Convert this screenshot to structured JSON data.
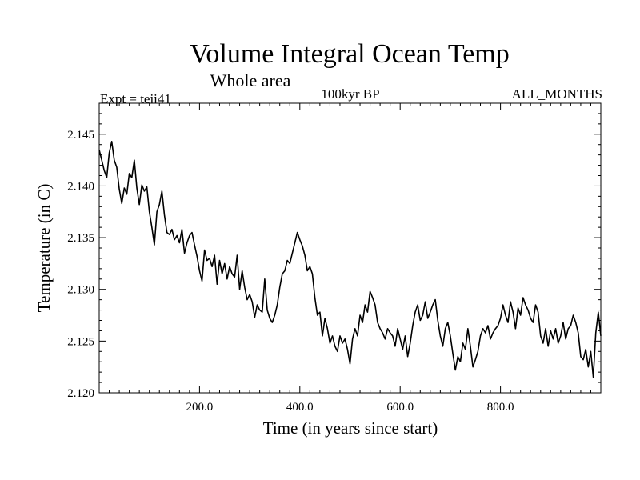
{
  "chart_data": {
    "type": "line",
    "title": "Volume Integral Ocean Temp",
    "subtitle": "Whole area",
    "annotations": {
      "expt": "Expt = teii41",
      "period": "100kyr BP",
      "months": "ALL_MONTHS"
    },
    "xlabel": "Time (in years since start)",
    "ylabel": "Temperature (in C)",
    "xlim": [
      0,
      1000
    ],
    "ylim": [
      2.12,
      2.148
    ],
    "xticks": [
      200,
      400,
      600,
      800
    ],
    "xtick_labels": [
      "200.0",
      "400.0",
      "600.0",
      "800.0"
    ],
    "yticks": [
      2.12,
      2.125,
      2.13,
      2.135,
      2.14,
      2.145
    ],
    "ytick_labels": [
      "2.120",
      "2.125",
      "2.130",
      "2.135",
      "2.140",
      "2.145"
    ],
    "grid": false,
    "series": [
      {
        "color": "#000000",
        "x": [
          0,
          5,
          10,
          15,
          20,
          25,
          30,
          35,
          40,
          45,
          50,
          55,
          60,
          65,
          70,
          75,
          80,
          85,
          90,
          95,
          100,
          105,
          110,
          115,
          120,
          125,
          130,
          135,
          140,
          145,
          150,
          155,
          160,
          165,
          170,
          175,
          180,
          185,
          190,
          195,
          200,
          205,
          210,
          215,
          220,
          225,
          230,
          235,
          240,
          245,
          250,
          255,
          260,
          265,
          270,
          275,
          280,
          285,
          290,
          295,
          300,
          305,
          310,
          315,
          320,
          325,
          330,
          335,
          340,
          345,
          350,
          355,
          360,
          365,
          370,
          375,
          380,
          385,
          390,
          395,
          400,
          405,
          410,
          415,
          420,
          425,
          430,
          435,
          440,
          445,
          450,
          455,
          460,
          465,
          470,
          475,
          480,
          485,
          490,
          495,
          500,
          505,
          510,
          515,
          520,
          525,
          530,
          535,
          540,
          545,
          550,
          555,
          560,
          565,
          570,
          575,
          580,
          585,
          590,
          595,
          600,
          605,
          610,
          615,
          620,
          625,
          630,
          635,
          640,
          645,
          650,
          655,
          660,
          665,
          670,
          675,
          680,
          685,
          690,
          695,
          700,
          705,
          710,
          715,
          720,
          725,
          730,
          735,
          740,
          745,
          750,
          755,
          760,
          765,
          770,
          775,
          780,
          785,
          790,
          795,
          800,
          805,
          810,
          815,
          820,
          825,
          830,
          835,
          840,
          845,
          850,
          855,
          860,
          865,
          870,
          875,
          880,
          885,
          890,
          895,
          900,
          905,
          910,
          915,
          920,
          925,
          930,
          935,
          940,
          945,
          950,
          955,
          960,
          965,
          970,
          975,
          980,
          985,
          990,
          995,
          1000
        ],
        "y": [
          2.1435,
          2.1425,
          2.1415,
          2.1408,
          2.1432,
          2.1443,
          2.1425,
          2.1418,
          2.1397,
          2.1383,
          2.1398,
          2.1392,
          2.1412,
          2.1408,
          2.1425,
          2.1398,
          2.1382,
          2.1401,
          2.1395,
          2.1399,
          2.1375,
          2.136,
          2.1343,
          2.1375,
          2.1382,
          2.1395,
          2.1372,
          2.1355,
          2.1353,
          2.1358,
          2.1348,
          2.1352,
          2.1345,
          2.1358,
          2.1335,
          2.1345,
          2.1352,
          2.1355,
          2.1343,
          2.1332,
          2.1318,
          2.1308,
          2.1338,
          2.1328,
          2.133,
          2.1322,
          2.1333,
          2.1305,
          2.1328,
          2.1315,
          2.1325,
          2.131,
          2.1322,
          2.1315,
          2.1312,
          2.1333,
          2.13,
          2.1318,
          2.1302,
          2.129,
          2.1295,
          2.1288,
          2.1273,
          2.1285,
          2.128,
          2.1278,
          2.131,
          2.128,
          2.1272,
          2.1268,
          2.1275,
          2.1285,
          2.1302,
          2.1315,
          2.1318,
          2.1328,
          2.1325,
          2.1335,
          2.1345,
          2.1355,
          2.1348,
          2.1342,
          2.1333,
          2.1318,
          2.1322,
          2.1315,
          2.1292,
          2.1275,
          2.1278,
          2.1255,
          2.1272,
          2.1262,
          2.1248,
          2.1255,
          2.1245,
          2.124,
          2.1255,
          2.1248,
          2.1252,
          2.1242,
          2.1228,
          2.1252,
          2.1262,
          2.1255,
          2.1275,
          2.1268,
          2.1285,
          2.1278,
          2.1298,
          2.1292,
          2.1285,
          2.1268,
          2.1262,
          2.1258,
          2.1252,
          2.1262,
          2.1258,
          2.1255,
          2.1245,
          2.1262,
          2.1252,
          2.1242,
          2.1255,
          2.1235,
          2.1248,
          2.1265,
          2.1278,
          2.1285,
          2.127,
          2.1275,
          2.1288,
          2.1272,
          2.1278,
          2.1285,
          2.129,
          2.127,
          2.1255,
          2.1245,
          2.1262,
          2.1268,
          2.1255,
          2.1238,
          2.1222,
          2.1235,
          2.123,
          2.1248,
          2.1242,
          2.1262,
          2.1245,
          2.1225,
          2.1232,
          2.124,
          2.1255,
          2.1262,
          2.1258,
          2.1265,
          2.1252,
          2.1258,
          2.1262,
          2.1265,
          2.1272,
          2.1285,
          2.1275,
          2.1268,
          2.1288,
          2.1278,
          2.1262,
          2.1282,
          2.1275,
          2.1292,
          2.1285,
          2.128,
          2.1272,
          2.1268,
          2.1285,
          2.1278,
          2.1255,
          2.1248,
          2.1262,
          2.1245,
          2.126,
          2.1252,
          2.1262,
          2.1248,
          2.1255,
          2.1268,
          2.1252,
          2.1262,
          2.1265,
          2.1275,
          2.1268,
          2.1258,
          2.1235,
          2.1232,
          2.1242,
          2.1225,
          2.124,
          2.1215,
          2.1258,
          2.1278,
          2.1255
        ]
      }
    ]
  }
}
